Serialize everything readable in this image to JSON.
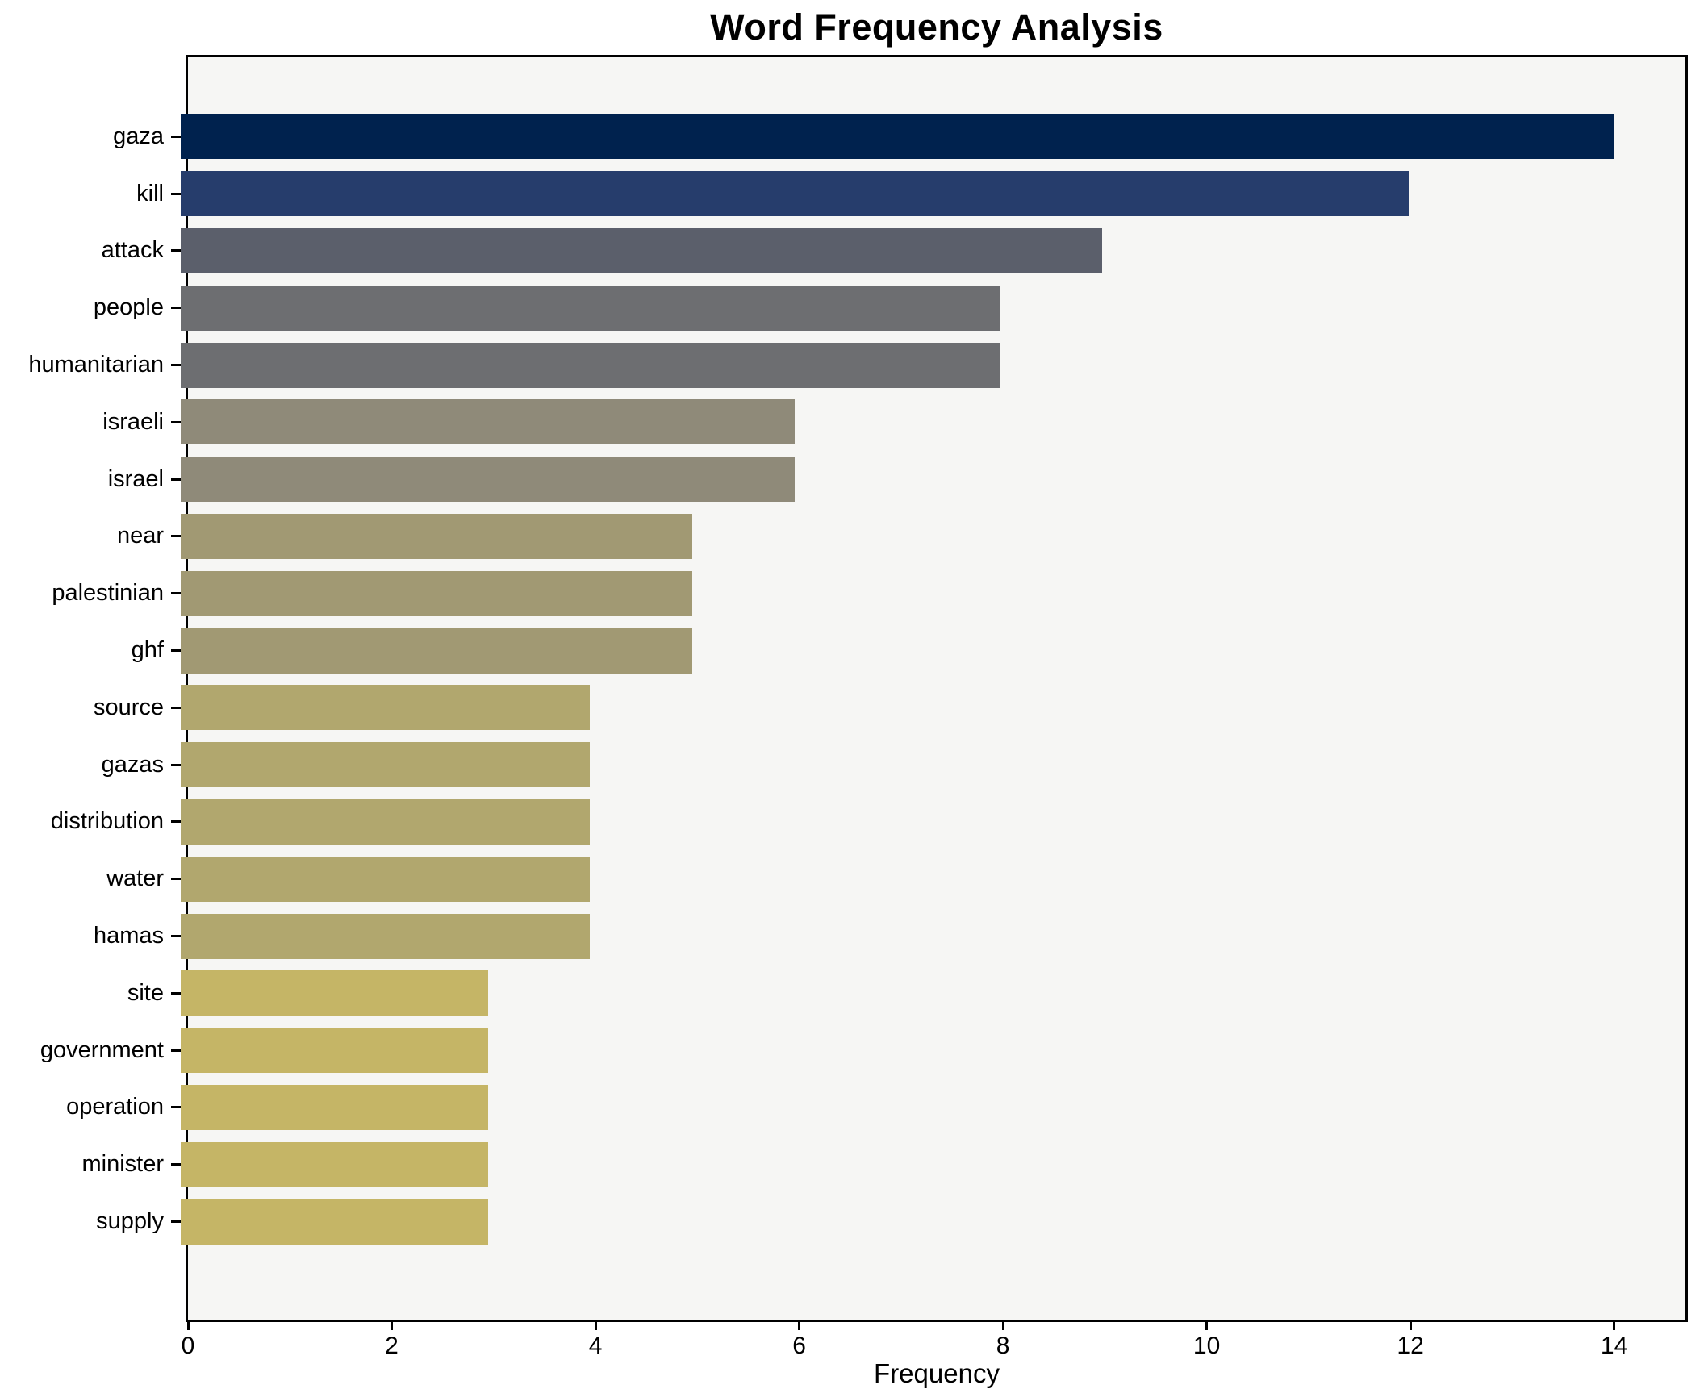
{
  "chart_data": {
    "type": "bar",
    "orientation": "horizontal",
    "title": "Word Frequency Analysis",
    "xlabel": "Frequency",
    "ylabel": "",
    "categories": [
      "gaza",
      "kill",
      "attack",
      "people",
      "humanitarian",
      "israeli",
      "israel",
      "near",
      "palestinian",
      "ghf",
      "source",
      "gazas",
      "distribution",
      "water",
      "hamas",
      "site",
      "government",
      "operation",
      "minister",
      "supply"
    ],
    "values": [
      14,
      12,
      9,
      8,
      8,
      6,
      6,
      5,
      5,
      5,
      4,
      4,
      4,
      4,
      4,
      3,
      3,
      3,
      3,
      3
    ],
    "bar_colors": [
      "#00224e",
      "#263d6c",
      "#5b5f6b",
      "#6d6e71",
      "#6d6e71",
      "#8f8a79",
      "#8f8a79",
      "#a19973",
      "#a19973",
      "#a19973",
      "#b1a76e",
      "#b1a76e",
      "#b1a76e",
      "#b1a76e",
      "#b1a76e",
      "#c5b566",
      "#c5b566",
      "#c5b566",
      "#c5b566",
      "#c5b566"
    ],
    "x_ticks": [
      0,
      2,
      4,
      6,
      8,
      10,
      12,
      14
    ],
    "xlim": [
      0,
      14.7
    ],
    "grid": false,
    "legend": null,
    "plot_background": "#f6f6f4",
    "axis_color": "#000000",
    "title_color": "#000000"
  }
}
